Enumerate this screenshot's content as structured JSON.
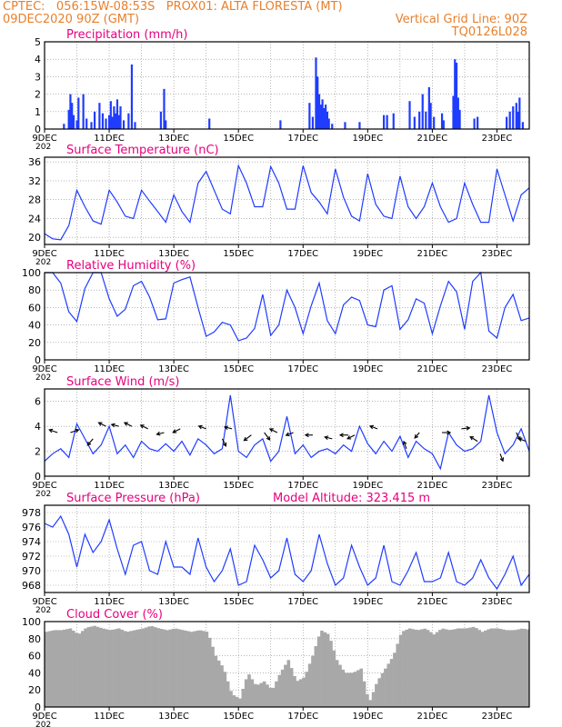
{
  "header": {
    "line1_left": "CPTEC:   056:15W-08:53S   PROX01: ALTA FLORESTA (MT)",
    "line2_left": "09DEC2020 90Z (GMT)",
    "line2_right": "Vertical Grid Line: 90Z",
    "line3_right": "TQ0126L028"
  },
  "colors": {
    "header": "#e8802c",
    "title": "#e6007e",
    "series": "#1f3cff",
    "cloud": "#a8a8a8",
    "grid": "#888888"
  },
  "x_axis": {
    "tick_labels": [
      "9DEC",
      "11DEC",
      "13DEC",
      "15DEC",
      "17DEC",
      "19DEC",
      "21DEC",
      "23DEC"
    ],
    "tick_days": [
      9,
      11,
      13,
      15,
      17,
      19,
      21,
      23
    ],
    "grid_days": [
      10,
      11,
      12,
      13,
      14,
      15,
      16,
      17,
      18,
      19,
      20,
      21,
      22,
      23
    ],
    "range_days": [
      9,
      24
    ],
    "truncated_year": "202"
  },
  "chart_data": [
    {
      "type": "bar",
      "title": "Precipitation (mm/h)",
      "ylim": [
        0,
        5
      ],
      "yticks": [
        0,
        1,
        2,
        3,
        4,
        5
      ],
      "bars": [
        [
          9.6,
          0.3
        ],
        [
          9.75,
          1.1
        ],
        [
          9.8,
          2.0
        ],
        [
          9.85,
          1.5
        ],
        [
          9.9,
          0.8
        ],
        [
          10.0,
          0.5
        ],
        [
          10.05,
          1.8
        ],
        [
          10.2,
          2.0
        ],
        [
          10.3,
          0.6
        ],
        [
          10.45,
          0.4
        ],
        [
          10.55,
          1.0
        ],
        [
          10.7,
          1.5
        ],
        [
          10.8,
          0.9
        ],
        [
          10.9,
          0.6
        ],
        [
          11.0,
          0.8
        ],
        [
          11.05,
          1.6
        ],
        [
          11.1,
          0.7
        ],
        [
          11.15,
          1.3
        ],
        [
          11.2,
          0.9
        ],
        [
          11.25,
          1.7
        ],
        [
          11.3,
          0.8
        ],
        [
          11.35,
          1.3
        ],
        [
          11.45,
          0.5
        ],
        [
          11.6,
          0.9
        ],
        [
          11.7,
          3.7
        ],
        [
          11.8,
          0.4
        ],
        [
          12.6,
          1.0
        ],
        [
          12.7,
          2.3
        ],
        [
          12.75,
          0.5
        ],
        [
          14.1,
          0.6
        ],
        [
          16.3,
          0.5
        ],
        [
          17.2,
          1.5
        ],
        [
          17.3,
          0.7
        ],
        [
          17.4,
          4.1
        ],
        [
          17.45,
          3.0
        ],
        [
          17.5,
          2.0
        ],
        [
          17.55,
          1.4
        ],
        [
          17.6,
          1.7
        ],
        [
          17.65,
          1.2
        ],
        [
          17.7,
          1.4
        ],
        [
          17.75,
          1.0
        ],
        [
          17.8,
          0.6
        ],
        [
          17.9,
          0.3
        ],
        [
          18.3,
          0.4
        ],
        [
          18.75,
          0.4
        ],
        [
          19.5,
          0.8
        ],
        [
          19.6,
          0.8
        ],
        [
          19.8,
          0.9
        ],
        [
          20.3,
          1.6
        ],
        [
          20.45,
          0.7
        ],
        [
          20.6,
          1.0
        ],
        [
          20.7,
          2.0
        ],
        [
          20.8,
          1.0
        ],
        [
          20.9,
          2.4
        ],
        [
          20.95,
          1.5
        ],
        [
          21.05,
          0.7
        ],
        [
          21.3,
          0.9
        ],
        [
          21.35,
          0.5
        ],
        [
          21.65,
          1.9
        ],
        [
          21.7,
          4.0
        ],
        [
          21.75,
          3.8
        ],
        [
          21.8,
          1.8
        ],
        [
          21.85,
          1.1
        ],
        [
          22.3,
          0.6
        ],
        [
          22.4,
          0.7
        ],
        [
          23.3,
          0.7
        ],
        [
          23.4,
          1.0
        ],
        [
          23.5,
          1.3
        ],
        [
          23.6,
          1.5
        ],
        [
          23.65,
          1.0
        ],
        [
          23.7,
          1.8
        ],
        [
          23.8,
          0.4
        ]
      ]
    },
    {
      "type": "line",
      "title": "Surface Temperature (nC)",
      "ylim": [
        18.5,
        37
      ],
      "yticks": [
        20,
        24,
        28,
        32,
        36
      ],
      "x": [
        9,
        9.25,
        9.5,
        9.75,
        10,
        10.25,
        10.5,
        10.75,
        11,
        11.25,
        11.5,
        11.75,
        12,
        12.25,
        12.5,
        12.75,
        13,
        13.25,
        13.5,
        13.75,
        14,
        14.25,
        14.5,
        14.75,
        15,
        15.25,
        15.5,
        15.75,
        16,
        16.25,
        16.5,
        16.75,
        17,
        17.25,
        17.5,
        17.75,
        18,
        18.25,
        18.5,
        18.75,
        19,
        19.25,
        19.5,
        19.75,
        20,
        20.25,
        20.5,
        20.75,
        21,
        21.25,
        21.5,
        21.75,
        22,
        22.25,
        22.5,
        22.75,
        23,
        23.25,
        23.5,
        23.75,
        24
      ],
      "values": [
        20.8,
        19.7,
        19.5,
        22.5,
        30,
        26.5,
        23.5,
        22.8,
        30,
        27.5,
        24.5,
        24,
        30,
        27.7,
        25.5,
        23.2,
        29,
        25.5,
        23.2,
        31.5,
        34,
        30,
        26,
        25,
        35.2,
        31.5,
        26.5,
        26.5,
        35,
        31.5,
        26,
        26,
        35.2,
        29.5,
        27.5,
        25,
        34.5,
        28.5,
        24.5,
        23.5,
        33.5,
        27,
        24.5,
        24,
        33,
        26.5,
        24,
        26.5,
        31.5,
        26.5,
        23.2,
        24,
        31.5,
        27,
        23.2,
        23.2,
        34.5,
        29,
        23.5,
        29,
        30.5
      ]
    },
    {
      "type": "line",
      "title": "Relative Humidity (%)",
      "ylim": [
        0,
        100
      ],
      "yticks": [
        0,
        20,
        40,
        60,
        80,
        100
      ],
      "x": [
        9,
        9.25,
        9.5,
        9.75,
        10,
        10.25,
        10.5,
        10.75,
        11,
        11.25,
        11.5,
        11.75,
        12,
        12.25,
        12.5,
        12.75,
        13,
        13.25,
        13.5,
        13.75,
        14,
        14.25,
        14.5,
        14.75,
        15,
        15.25,
        15.5,
        15.75,
        16,
        16.25,
        16.5,
        16.75,
        17,
        17.25,
        17.5,
        17.75,
        18,
        18.25,
        18.5,
        18.75,
        19,
        19.25,
        19.5,
        19.75,
        20,
        20.25,
        20.5,
        20.75,
        21,
        21.25,
        21.5,
        21.75,
        22,
        22.25,
        22.5,
        22.75,
        23,
        23.25,
        23.5,
        23.75,
        24
      ],
      "values": [
        100,
        100,
        88,
        55,
        44,
        82,
        100,
        100,
        70,
        50,
        58,
        85,
        90,
        72,
        46,
        47,
        88,
        92,
        95,
        60,
        27,
        32,
        43,
        40,
        22,
        25,
        36,
        75,
        28,
        40,
        80,
        60,
        30,
        62,
        88,
        45,
        30,
        63,
        72,
        68,
        40,
        38,
        80,
        85,
        35,
        46,
        70,
        65,
        30,
        62,
        90,
        78,
        35,
        90,
        100,
        33,
        25,
        60,
        75,
        45,
        48
      ]
    },
    {
      "type": "line",
      "title": "Surface Wind (m/s)",
      "ylim": [
        0,
        7
      ],
      "yticks": [
        0,
        2,
        4,
        6
      ],
      "x": [
        9,
        9.25,
        9.5,
        9.75,
        10,
        10.25,
        10.5,
        10.75,
        11,
        11.25,
        11.5,
        11.75,
        12,
        12.25,
        12.5,
        12.75,
        13,
        13.25,
        13.5,
        13.75,
        14,
        14.25,
        14.5,
        14.75,
        15,
        15.25,
        15.5,
        15.75,
        16,
        16.25,
        16.5,
        16.75,
        17,
        17.25,
        17.5,
        17.75,
        18,
        18.25,
        18.5,
        18.75,
        19,
        19.25,
        19.5,
        19.75,
        20,
        20.25,
        20.5,
        20.75,
        21,
        21.25,
        21.5,
        21.75,
        22,
        22.25,
        22.5,
        22.75,
        23,
        23.25,
        23.5,
        23.75,
        24
      ],
      "values": [
        1.2,
        1.8,
        2.2,
        1.5,
        4.2,
        3.0,
        1.8,
        2.5,
        4.0,
        1.8,
        2.5,
        1.5,
        2.8,
        2.2,
        2.0,
        2.6,
        2.0,
        2.8,
        1.7,
        3.0,
        2.5,
        1.8,
        2.2,
        6.5,
        2.0,
        1.5,
        2.5,
        3.0,
        1.2,
        2.0,
        4.8,
        1.8,
        2.5,
        1.5,
        2.0,
        2.2,
        1.8,
        2.5,
        2.0,
        4.0,
        2.6,
        1.8,
        2.8,
        2.0,
        3.2,
        1.5,
        2.8,
        2.2,
        1.8,
        0.6,
        3.5,
        2.5,
        2.0,
        2.2,
        2.8,
        6.5,
        3.5,
        1.8,
        2.5,
        3.8,
        2.0
      ],
      "arrows": [
        [
          9.4,
          3.5,
          -9,
          -3
        ],
        [
          9.8,
          3.5,
          9,
          -3
        ],
        [
          10.5,
          3.0,
          -6,
          7
        ],
        [
          10.9,
          4.0,
          -8,
          -4
        ],
        [
          11.3,
          4.0,
          -8,
          -2
        ],
        [
          11.7,
          4.0,
          -8,
          -4
        ],
        [
          12.2,
          3.8,
          -8,
          -4
        ],
        [
          12.7,
          3.5,
          -8,
          2
        ],
        [
          13.2,
          3.8,
          -8,
          4
        ],
        [
          14.0,
          3.8,
          -8,
          -3
        ],
        [
          14.5,
          3.0,
          4,
          8
        ],
        [
          14.8,
          3.8,
          -8,
          -2
        ],
        [
          15.4,
          3.3,
          -8,
          6
        ],
        [
          15.8,
          3.5,
          6,
          8
        ],
        [
          16.2,
          3.5,
          -8,
          -4
        ],
        [
          16.7,
          3.5,
          -8,
          3
        ],
        [
          17.3,
          3.3,
          -8,
          0
        ],
        [
          17.9,
          3.0,
          -8,
          -2
        ],
        [
          18.4,
          3.3,
          -9,
          0
        ],
        [
          18.6,
          3.3,
          -8,
          4
        ],
        [
          19.3,
          3.8,
          -8,
          -3
        ],
        [
          20.2,
          2.2,
          -3,
          -8
        ],
        [
          20.6,
          3.5,
          -5,
          6
        ],
        [
          21.3,
          3.5,
          9,
          0
        ],
        [
          21.9,
          3.8,
          9,
          -1
        ],
        [
          22.4,
          2.8,
          -8,
          -5
        ],
        [
          23.1,
          1.8,
          3,
          8
        ],
        [
          23.6,
          3.5,
          4,
          8
        ],
        [
          23.9,
          2.8,
          -8,
          -3
        ]
      ]
    },
    {
      "type": "line",
      "title": "Surface Pressure (hPa)",
      "annotation": "Model Altitude: 323.415  m",
      "ylim": [
        967,
        979
      ],
      "yticks": [
        968,
        970,
        972,
        974,
        976,
        978
      ],
      "x": [
        9,
        9.25,
        9.5,
        9.75,
        10,
        10.25,
        10.5,
        10.75,
        11,
        11.25,
        11.5,
        11.75,
        12,
        12.25,
        12.5,
        12.75,
        13,
        13.25,
        13.5,
        13.75,
        14,
        14.25,
        14.5,
        14.75,
        15,
        15.25,
        15.5,
        15.75,
        16,
        16.25,
        16.5,
        16.75,
        17,
        17.25,
        17.5,
        17.75,
        18,
        18.25,
        18.5,
        18.75,
        19,
        19.25,
        19.5,
        19.75,
        20,
        20.25,
        20.5,
        20.75,
        21,
        21.25,
        21.5,
        21.75,
        22,
        22.25,
        22.5,
        22.75,
        23,
        23.25,
        23.5,
        23.75,
        24
      ],
      "values": [
        976.5,
        976,
        977.5,
        975,
        970.5,
        975,
        972.5,
        974,
        977,
        973,
        969.5,
        973.5,
        974,
        970,
        969.5,
        974,
        970.5,
        970.5,
        969.5,
        974.5,
        970.5,
        968.5,
        970,
        973,
        968,
        968.5,
        973.5,
        971.5,
        969,
        970,
        974.5,
        969.5,
        968.5,
        970,
        975,
        971,
        968,
        969,
        973.5,
        970.5,
        968,
        969,
        973.5,
        968.5,
        968,
        970,
        972.5,
        968.5,
        968.5,
        969,
        972.5,
        968.5,
        968,
        969,
        971.5,
        969,
        967.5,
        969.5,
        972,
        968,
        969.5
      ]
    },
    {
      "type": "area",
      "title": "Cloud Cover (%)",
      "ylim": [
        0,
        100
      ],
      "yticks": [
        0,
        20,
        40,
        60,
        80,
        100
      ],
      "x": [
        9,
        9.25,
        9.5,
        9.75,
        10,
        10.25,
        10.5,
        10.75,
        11,
        11.25,
        11.5,
        11.75,
        12,
        12.25,
        12.5,
        12.75,
        13,
        13.25,
        13.5,
        13.75,
        14,
        14.25,
        14.5,
        14.75,
        15,
        15.25,
        15.5,
        15.75,
        16,
        16.25,
        16.5,
        16.75,
        17,
        17.25,
        17.5,
        17.75,
        18,
        18.25,
        18.5,
        18.75,
        19,
        19.25,
        19.5,
        19.75,
        20,
        20.25,
        20.5,
        20.75,
        21,
        21.25,
        21.5,
        21.75,
        22,
        22.25,
        22.5,
        22.75,
        23,
        23.25,
        23.5,
        23.75,
        24
      ],
      "values": [
        88,
        90,
        90,
        92,
        85,
        93,
        95,
        92,
        90,
        92,
        88,
        90,
        92,
        95,
        92,
        90,
        92,
        90,
        88,
        90,
        88,
        60,
        45,
        15,
        10,
        40,
        25,
        30,
        20,
        40,
        55,
        30,
        35,
        60,
        90,
        85,
        55,
        40,
        40,
        45,
        5,
        30,
        45,
        60,
        88,
        92,
        90,
        92,
        85,
        92,
        90,
        92,
        92,
        94,
        88,
        92,
        92,
        90,
        90,
        92,
        90
      ]
    }
  ]
}
